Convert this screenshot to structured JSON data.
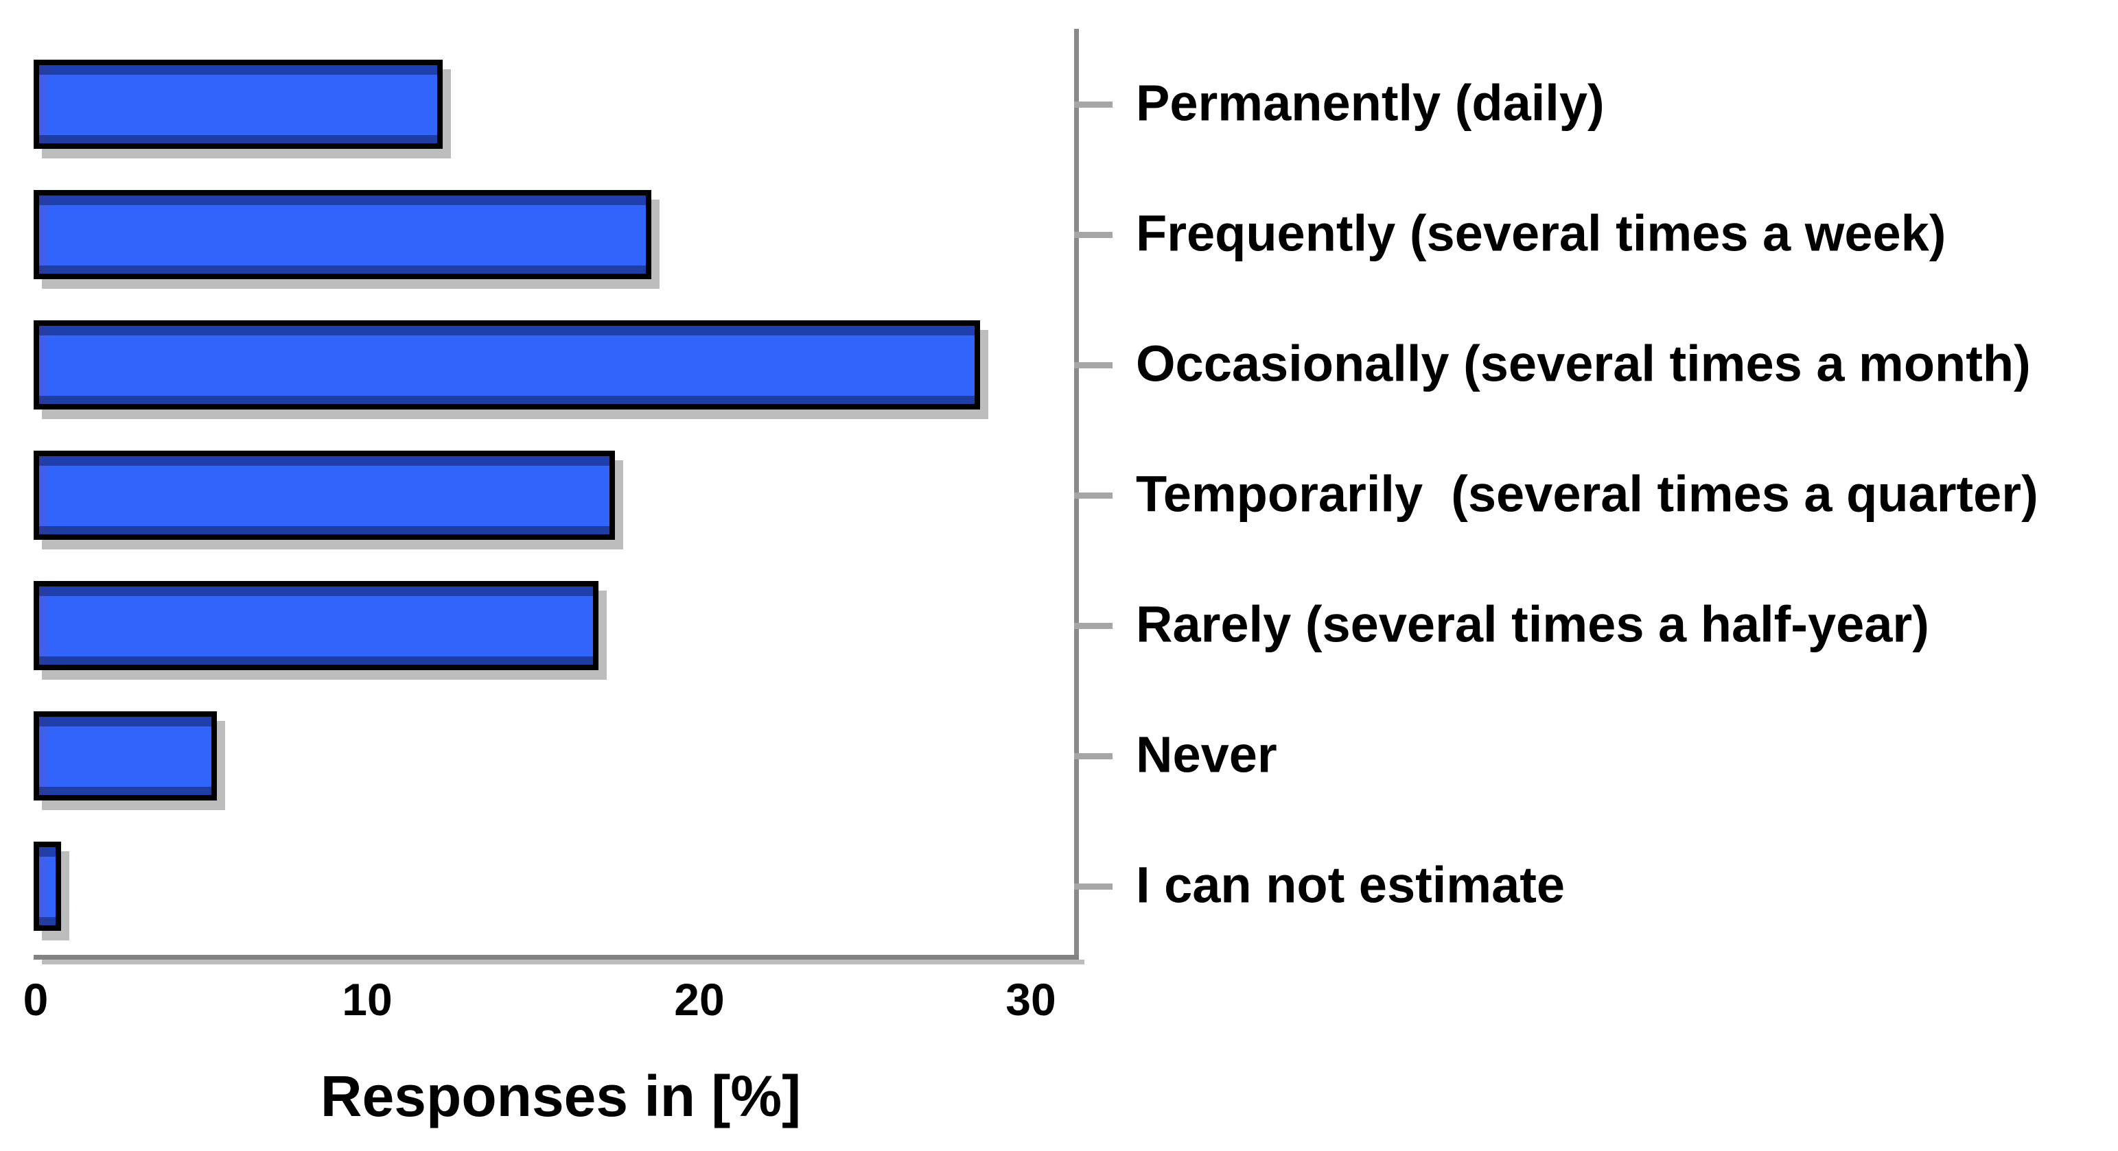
{
  "chart_data": {
    "type": "bar",
    "orientation": "horizontal",
    "title": "",
    "xlabel": "Responses in [%]",
    "ylabel": "",
    "categories": [
      "Permanently (daily)",
      "Frequently (several times a week)",
      "Occasionally (several times a month)",
      "Temporarily  (several times a quarter)",
      "Rarely (several times a half-year)",
      "Never",
      "I can not estimate"
    ],
    "values": [
      12.2,
      18.5,
      28.4,
      17.4,
      16.9,
      5.4,
      0.7
    ],
    "x_ticks": [
      0,
      10,
      20,
      30
    ],
    "xlim": [
      0,
      31.3
    ],
    "grid": false,
    "legend": "none",
    "bar_color": "#3064FA",
    "bar_border_color": "#000000",
    "bar_shadow_color": "#bdbdbd",
    "axis_line_color": "#8a8a8a",
    "tick_mark_color": "#a6a6a6",
    "text_color": "#000000",
    "background_color": "#ffffff"
  }
}
